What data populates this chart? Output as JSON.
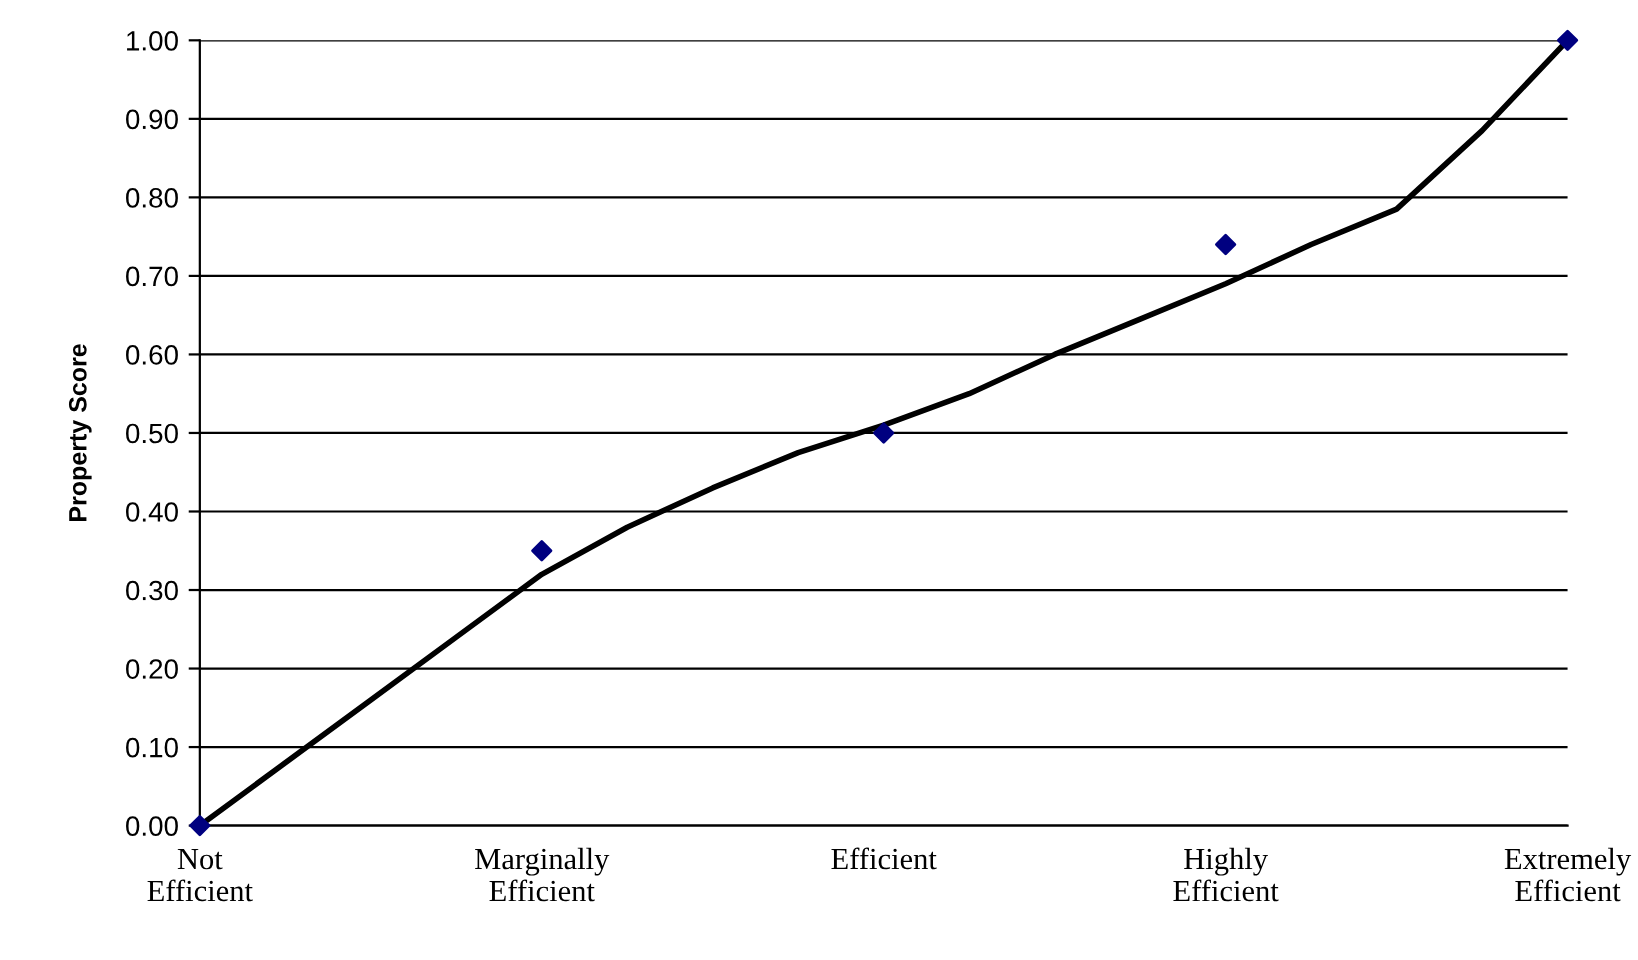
{
  "chart_data": {
    "type": "scatter",
    "ylabel": "Property Score",
    "categories": [
      "Not\nEfficient",
      null,
      null,
      null,
      "Marginally\nEfficient",
      null,
      null,
      null,
      "Efficient",
      null,
      null,
      null,
      "Highly\nEfficient",
      null,
      null,
      null,
      "Extremely\nEfficient"
    ],
    "ylim": [
      0,
      1
    ],
    "yticks": [
      {
        "value": 0,
        "label": "0.00"
      },
      {
        "value": 0.1,
        "label": "0.10"
      },
      {
        "value": 0.2,
        "label": "0.20"
      },
      {
        "value": 0.3,
        "label": "0.30"
      },
      {
        "value": 0.4,
        "label": "0.40"
      },
      {
        "value": 0.5,
        "label": "0.50"
      },
      {
        "value": 0.6,
        "label": "0.60"
      },
      {
        "value": 0.7,
        "label": "0.70"
      },
      {
        "value": 0.8,
        "label": "0.80"
      },
      {
        "value": 0.9,
        "label": "0.90"
      },
      {
        "value": 1,
        "label": "1.00"
      }
    ],
    "grid": "y",
    "marker": "diamond",
    "series": [
      {
        "type": "line",
        "color": "#000000",
        "marker": "none",
        "values": [
          0,
          0.08,
          0.16,
          0.24,
          0.32,
          0.38,
          0.43,
          0.475,
          0.51,
          0.55,
          0.6,
          0.645,
          0.69,
          0.74,
          0.785,
          0.885,
          1
        ]
      },
      {
        "color": "#000080",
        "values": [
          0,
          null,
          null,
          null,
          0.35,
          null,
          null,
          null,
          0.5,
          null,
          null,
          null,
          0.74,
          null,
          null,
          null,
          1
        ]
      }
    ]
  }
}
